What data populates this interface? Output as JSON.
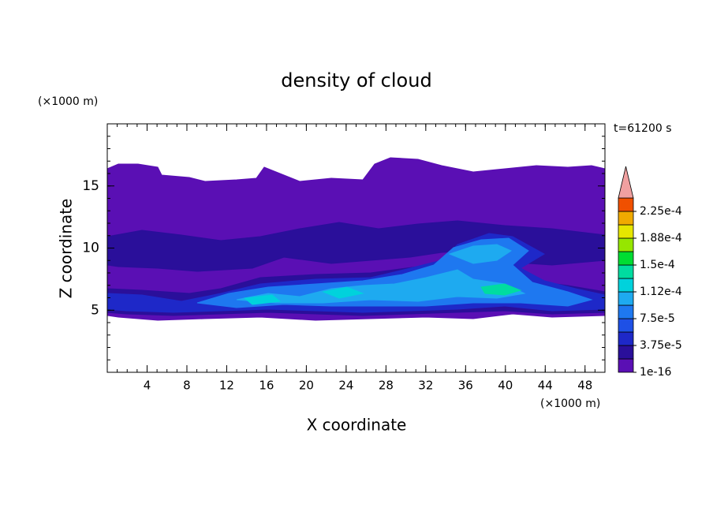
{
  "chart_data": {
    "type": "contour",
    "title": "density of cloud",
    "xlabel": "X coordinate",
    "ylabel": "Z coordinate",
    "x_unit": "(×1000 m)",
    "y_unit": "(×1000 m)",
    "annotation": "t=61200 s",
    "xlim": [
      0,
      50
    ],
    "ylim": [
      0,
      20
    ],
    "xticks": [
      4,
      8,
      12,
      16,
      20,
      24,
      28,
      32,
      36,
      40,
      44,
      48
    ],
    "yticks": [
      5,
      10,
      15
    ],
    "clevels": [
      1e-16,
      1.875e-05,
      3.75e-05,
      5.625e-05,
      7.5e-05,
      9.375e-05,
      0.0001125,
      0.00013125,
      0.00015,
      0.00016875,
      0.0001875,
      0.00020625,
      0.000225,
      0.00024375
    ],
    "cticks": [
      1e-16,
      {
        "value": 3.75e-05,
        "label": "3.75e-5"
      },
      {
        "value": 7.5e-05,
        "label": "7.5e-5"
      },
      {
        "value": 0.0001125,
        "label": "1.12e-4"
      },
      {
        "value": 0.00015,
        "label": "1.5e-4"
      },
      {
        "value": 0.0001875,
        "label": "1.88e-4"
      },
      {
        "value": 0.000225,
        "label": "2.25e-4"
      }
    ],
    "colors": [
      "#5a0fb4",
      "#2a0f9a",
      "#1e28c8",
      "#1e50e6",
      "#1e78f0",
      "#1eaaf0",
      "#00d2dc",
      "#00dca0",
      "#00dc32",
      "#96e600",
      "#e6e600",
      "#f0aa00",
      "#f05000"
    ],
    "extend_color": "#f0a0a0"
  }
}
